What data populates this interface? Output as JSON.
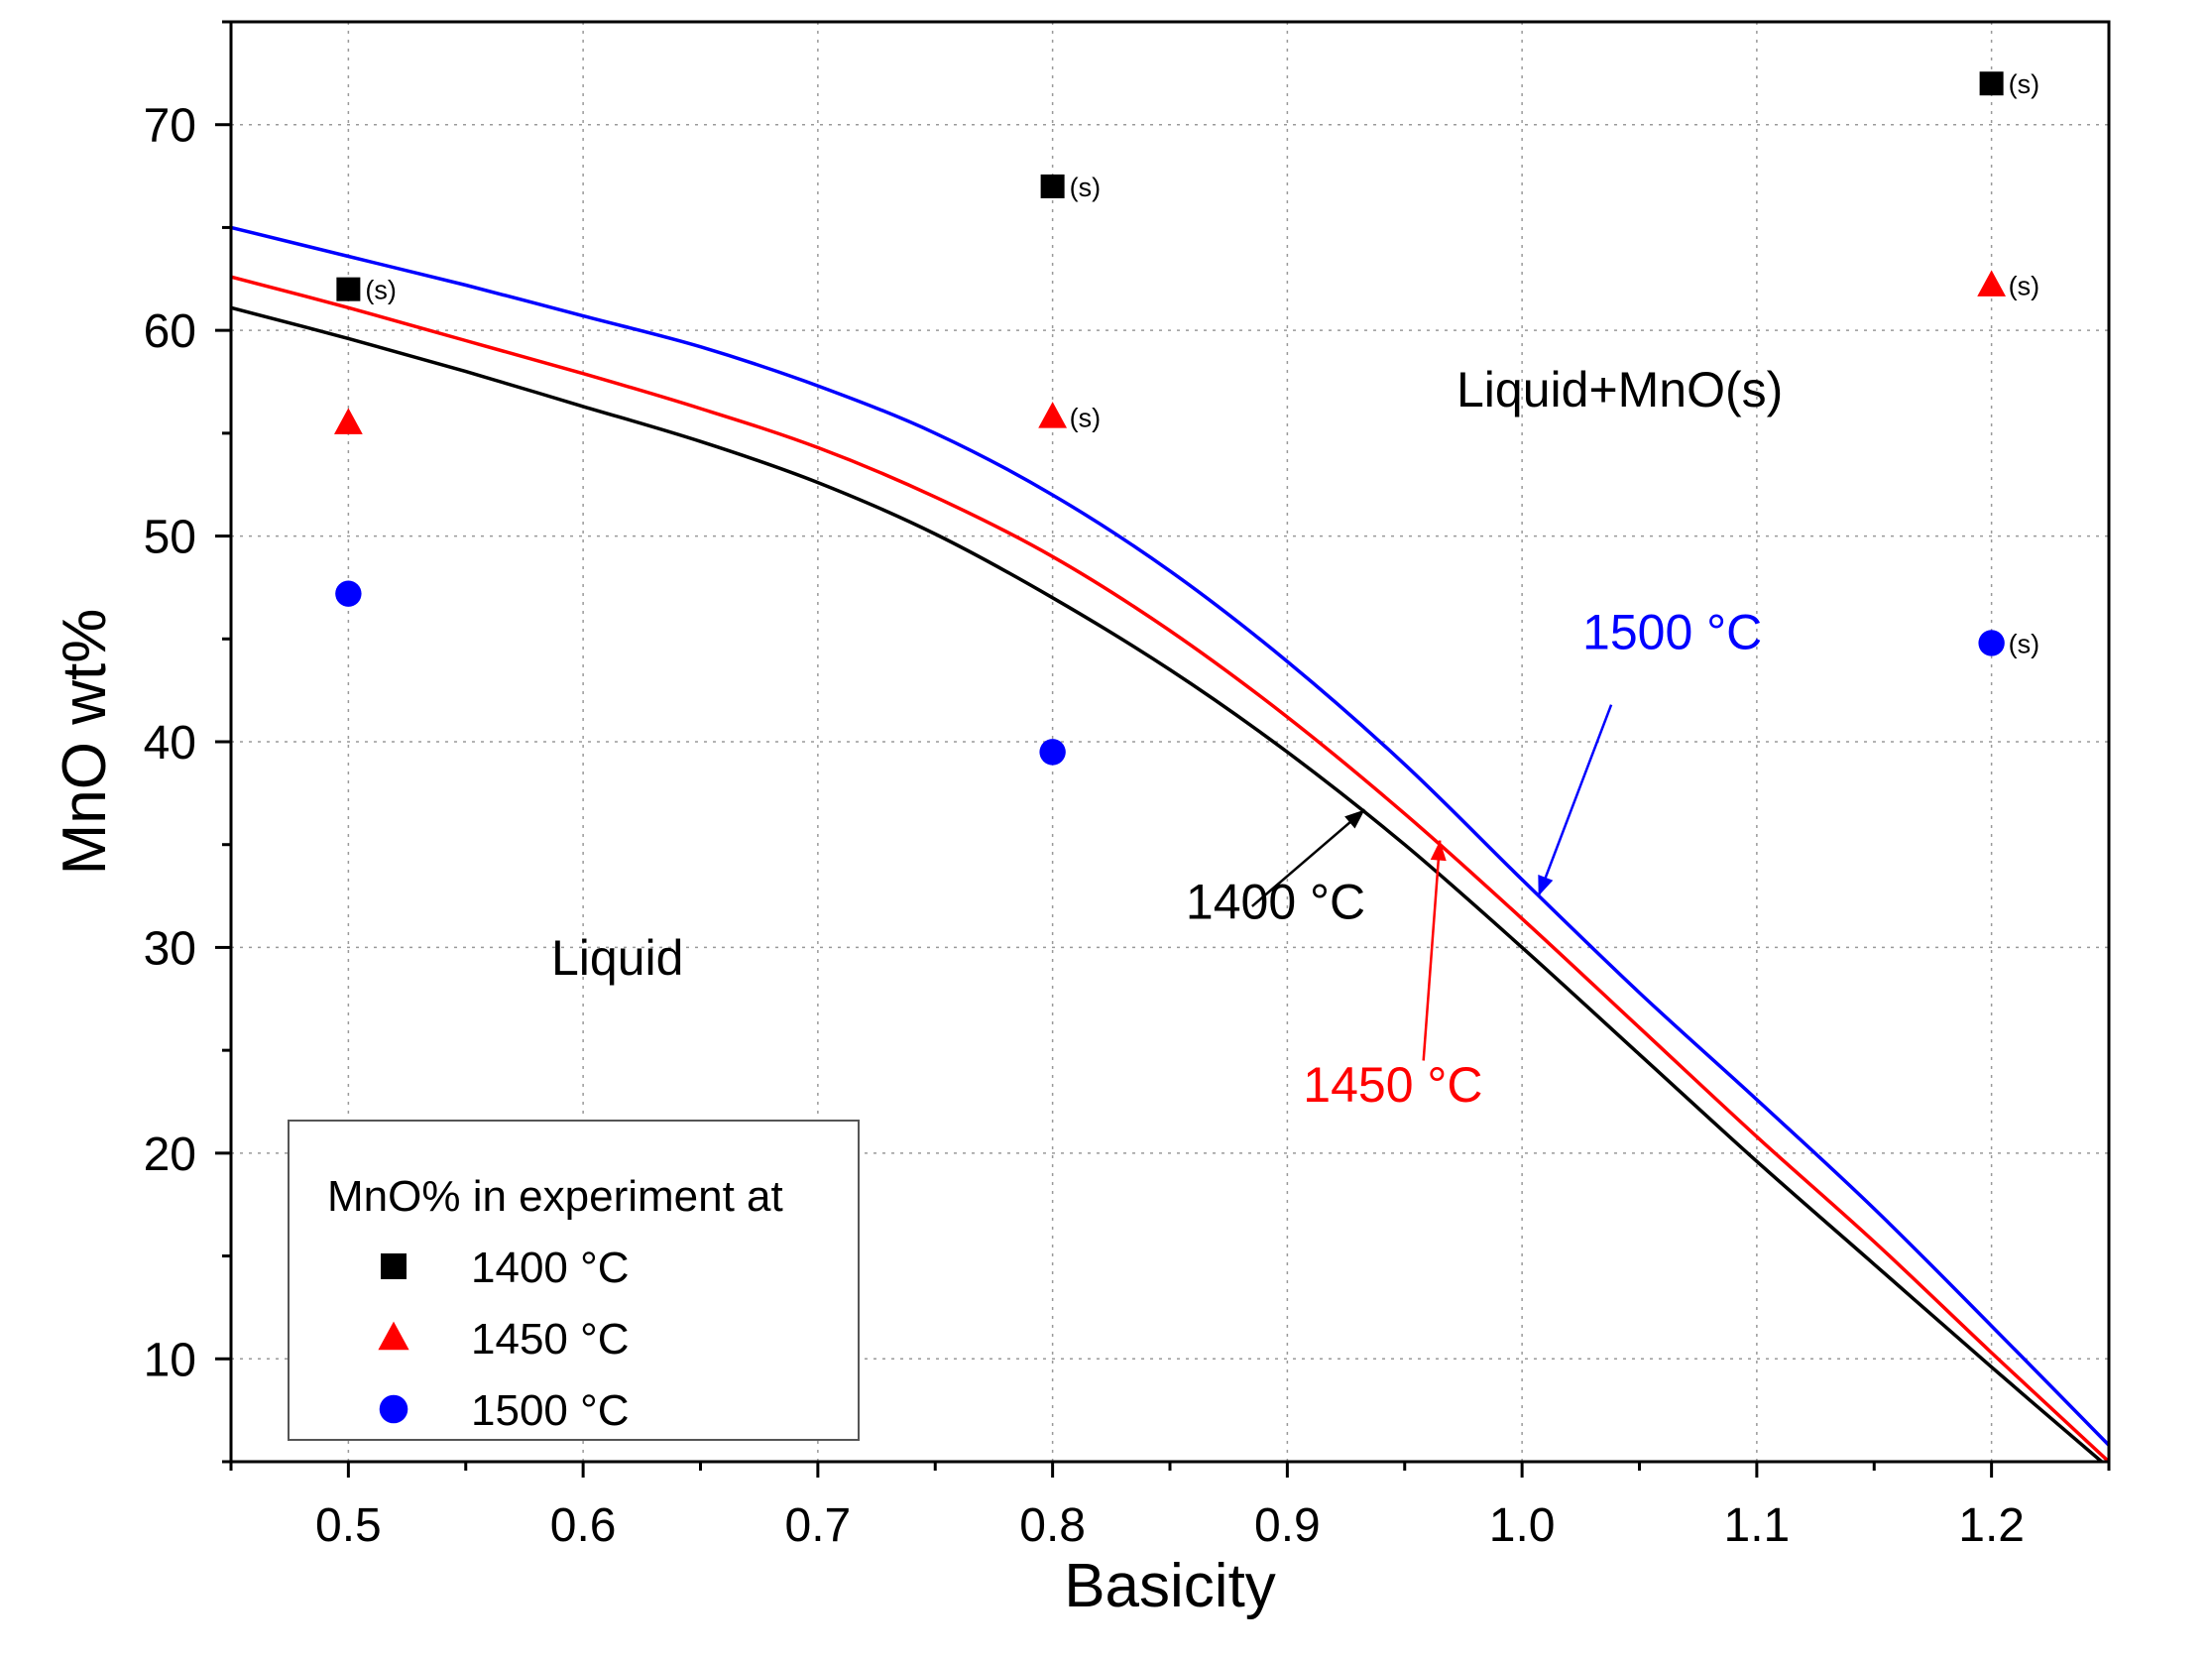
{
  "chart_data": {
    "type": "line",
    "xlabel": "Basicity",
    "ylabel": "MnO wt%",
    "xlim": [
      0.45,
      1.25
    ],
    "ylim": [
      5,
      75
    ],
    "grid": true,
    "x_ticks": [
      0.5,
      0.6,
      0.7,
      0.8,
      0.9,
      1.0,
      1.1,
      1.2
    ],
    "x_tick_labels": [
      "0.5",
      "0.6",
      "0.7",
      "0.8",
      "0.9",
      "1.0",
      "1.1",
      "1.2"
    ],
    "y_ticks": [
      10,
      20,
      30,
      40,
      50,
      60,
      70
    ],
    "y_tick_labels": [
      "10",
      "20",
      "30",
      "40",
      "50",
      "60",
      "70"
    ],
    "series": [
      {
        "name": "1400 °C",
        "label": "1400 °C",
        "color": "#000000",
        "x": [
          0.45,
          0.5,
          0.55,
          0.6,
          0.65,
          0.7,
          0.75,
          0.8,
          0.85,
          0.9,
          0.95,
          1.0,
          1.05,
          1.1,
          1.15,
          1.2,
          1.25
        ],
        "values": [
          61.1,
          59.6,
          58.0,
          56.3,
          54.6,
          52.6,
          50.1,
          47.0,
          43.5,
          39.5,
          35.0,
          30.0,
          24.8,
          19.6,
          14.6,
          9.6,
          4.7
        ]
      },
      {
        "name": "1450 °C",
        "label": "1450 °C",
        "color": "#ff0000",
        "x": [
          0.45,
          0.5,
          0.55,
          0.6,
          0.65,
          0.7,
          0.75,
          0.8,
          0.85,
          0.9,
          0.95,
          1.0,
          1.05,
          1.1,
          1.15,
          1.2,
          1.25
        ],
        "values": [
          62.6,
          61.1,
          59.5,
          57.9,
          56.2,
          54.3,
          51.9,
          49.0,
          45.4,
          41.2,
          36.5,
          31.4,
          26.1,
          20.8,
          15.7,
          10.3,
          5.0
        ]
      },
      {
        "name": "1500 °C",
        "label": "1500 °C",
        "color": "#0000ff",
        "x": [
          0.45,
          0.5,
          0.55,
          0.6,
          0.65,
          0.7,
          0.75,
          0.8,
          0.85,
          0.9,
          0.95,
          1.0,
          1.05,
          1.1,
          1.15,
          1.2,
          1.25
        ],
        "values": [
          65.0,
          63.6,
          62.2,
          60.7,
          59.2,
          57.3,
          55.0,
          52.0,
          48.3,
          43.9,
          38.9,
          33.3,
          27.8,
          22.6,
          17.3,
          11.6,
          5.8
        ]
      }
    ],
    "experiments": [
      {
        "series": "1400 °C",
        "marker": "square",
        "color": "#000000",
        "x": 0.5,
        "y": 62.0,
        "tag": "(s)"
      },
      {
        "series": "1400 °C",
        "marker": "square",
        "color": "#000000",
        "x": 0.8,
        "y": 67.0,
        "tag": "(s)"
      },
      {
        "series": "1400 °C",
        "marker": "square",
        "color": "#000000",
        "x": 1.2,
        "y": 72.0,
        "tag": "(s)"
      },
      {
        "series": "1450 °C",
        "marker": "triangle",
        "color": "#ff0000",
        "x": 0.5,
        "y": 55.5,
        "tag": ""
      },
      {
        "series": "1450 °C",
        "marker": "triangle",
        "color": "#ff0000",
        "x": 0.8,
        "y": 55.8,
        "tag": "(s)"
      },
      {
        "series": "1450 °C",
        "marker": "triangle",
        "color": "#ff0000",
        "x": 1.2,
        "y": 62.2,
        "tag": "(s)"
      },
      {
        "series": "1500 °C",
        "marker": "circle",
        "color": "#0000ff",
        "x": 0.5,
        "y": 47.2,
        "tag": ""
      },
      {
        "series": "1500 °C",
        "marker": "circle",
        "color": "#0000ff",
        "x": 0.8,
        "y": 39.5,
        "tag": ""
      },
      {
        "series": "1500 °C",
        "marker": "circle",
        "color": "#0000ff",
        "x": 1.2,
        "y": 44.8,
        "tag": "(s)"
      }
    ],
    "region_labels": [
      {
        "text": "Liquid+MnO(s)",
        "x": 1.05,
        "y": 65.0
      },
      {
        "text": "Liquid",
        "x": 0.6,
        "y": 30.0
      }
    ],
    "annotations": [
      {
        "text": "1400 °C",
        "color": "#000000",
        "x": 0.895,
        "y": 31.4,
        "arrow_to": [
          0.933,
          36.7
        ],
        "arrow_from": [
          0.885,
          32.0
        ]
      },
      {
        "text": "1450 °C",
        "color": "#ff0000",
        "x": 0.945,
        "y": 22.5,
        "arrow_to": [
          0.965,
          35.2
        ],
        "arrow_from": [
          0.958,
          24.5
        ]
      },
      {
        "text": "1500 °C",
        "color": "#0000ff",
        "x": 1.064,
        "y": 44.5,
        "arrow_to": [
          1.007,
          32.5
        ],
        "arrow_from": [
          1.038,
          41.8
        ]
      }
    ],
    "legend": {
      "title": "MnO% in experiment at",
      "position": "lower-left",
      "entries": [
        {
          "label": "1400 °C",
          "marker": "square",
          "color": "#000000"
        },
        {
          "label": "1450 °C",
          "marker": "triangle",
          "color": "#ff0000"
        },
        {
          "label": "1500 °C",
          "marker": "circle",
          "color": "#0000ff"
        }
      ]
    }
  }
}
